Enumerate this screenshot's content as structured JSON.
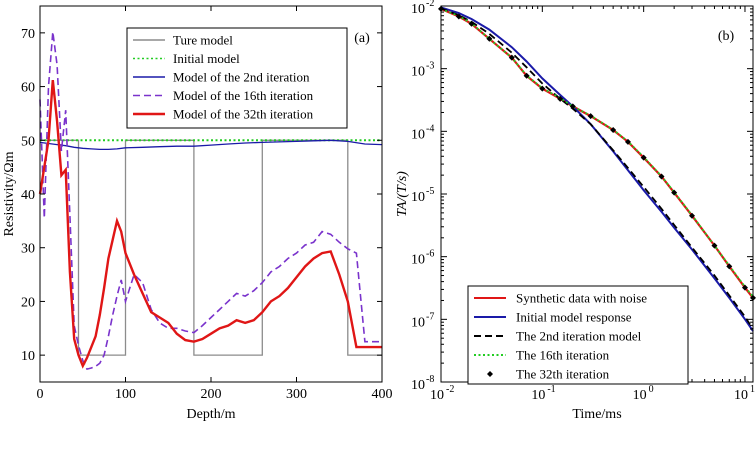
{
  "chart_data": [
    {
      "panel_label": "(a)",
      "type": "line",
      "xlabel": "Depth/m",
      "ylabel": "Resistivity/Ωm",
      "xlim": [
        0,
        400
      ],
      "ylim": [
        5,
        75
      ],
      "xticks": [
        0,
        100,
        200,
        300,
        400
      ],
      "yticks": [
        10,
        20,
        30,
        40,
        50,
        60,
        70
      ],
      "legend_position": "top-right",
      "series": [
        {
          "name": "Ture model",
          "color": "#8c8c8c",
          "dash": "solid",
          "x": [
            0,
            45,
            45,
            100,
            100,
            180,
            180,
            260,
            260,
            360,
            360,
            400
          ],
          "y": [
            50,
            50,
            10,
            10,
            50,
            50,
            10,
            10,
            50,
            50,
            10,
            10
          ]
        },
        {
          "name": "Initial model",
          "color": "#22cc22",
          "dash": "dotted",
          "x": [
            0,
            400
          ],
          "y": [
            50,
            50
          ]
        },
        {
          "name": "Model of the 2nd iteration",
          "color": "#1a1aa8",
          "dash": "solid",
          "x": [
            0,
            10,
            20,
            30,
            40,
            50,
            60,
            70,
            80,
            90,
            100,
            120,
            140,
            160,
            180,
            200,
            220,
            240,
            260,
            280,
            300,
            320,
            340,
            360,
            380,
            400
          ],
          "y": [
            49.6,
            49.4,
            49.2,
            49.0,
            48.7,
            48.5,
            48.4,
            48.3,
            48.3,
            48.4,
            48.6,
            48.7,
            48.8,
            48.9,
            48.9,
            49.1,
            49.3,
            49.5,
            49.6,
            49.7,
            49.8,
            49.9,
            50.0,
            49.8,
            49.3,
            49.2
          ]
        },
        {
          "name": "Model of the 16th iteration",
          "color": "#7a33cc",
          "dash": "dashed",
          "x": [
            0,
            5,
            10,
            15,
            20,
            25,
            30,
            35,
            40,
            45,
            50,
            55,
            60,
            65,
            70,
            75,
            80,
            85,
            90,
            95,
            100,
            110,
            120,
            130,
            140,
            150,
            160,
            170,
            180,
            190,
            200,
            210,
            220,
            230,
            240,
            250,
            260,
            270,
            280,
            290,
            300,
            310,
            320,
            330,
            340,
            350,
            360,
            370,
            380,
            390,
            400
          ],
          "y": [
            57.6,
            35.5,
            60.0,
            70.2,
            64.0,
            48.0,
            55.6,
            36.0,
            15.5,
            11.8,
            9.0,
            7.4,
            7.6,
            7.9,
            8.5,
            10.0,
            13.5,
            17.5,
            21.0,
            24.0,
            20.0,
            25.0,
            23.5,
            18.5,
            16.0,
            15.0,
            15.0,
            14.5,
            14.2,
            15.5,
            17.0,
            18.5,
            20.0,
            21.5,
            21.0,
            22.0,
            23.5,
            25.5,
            26.5,
            28.0,
            29.0,
            30.5,
            31.0,
            33.0,
            32.5,
            31.0,
            29.8,
            29.0,
            12.5,
            12.5,
            12.5
          ]
        },
        {
          "name": "Model of the 32th iteration",
          "color": "#e01616",
          "dash": "solid",
          "x": [
            0,
            5,
            10,
            15,
            20,
            25,
            30,
            35,
            40,
            45,
            50,
            55,
            60,
            65,
            70,
            75,
            80,
            85,
            90,
            95,
            100,
            110,
            120,
            130,
            140,
            150,
            160,
            170,
            180,
            190,
            200,
            210,
            220,
            230,
            240,
            250,
            260,
            270,
            280,
            290,
            300,
            310,
            320,
            330,
            340,
            350,
            360,
            370,
            380,
            390,
            400
          ],
          "y": [
            40.0,
            45.0,
            50.0,
            61.2,
            53.5,
            43.5,
            44.5,
            25.5,
            13.0,
            10.0,
            8.0,
            9.5,
            11.5,
            13.5,
            17.5,
            22.5,
            28.0,
            31.5,
            35.0,
            33.0,
            29.0,
            25.0,
            21.5,
            18.0,
            17.0,
            16.0,
            14.0,
            12.8,
            12.5,
            13.0,
            14.0,
            15.0,
            15.5,
            16.5,
            16.0,
            16.5,
            18.0,
            20.0,
            21.0,
            22.5,
            24.5,
            26.5,
            28.0,
            29.0,
            29.3,
            25.0,
            20.0,
            11.5,
            11.5,
            11.5,
            11.5
          ]
        }
      ]
    },
    {
      "panel_label": "(b)",
      "type": "line",
      "xscale": "log",
      "yscale": "log",
      "xlabel": "Time/ms",
      "ylabel": "TA/(T/s)",
      "xlim": [
        0.01,
        12
      ],
      "ylim": [
        1e-08,
        0.01
      ],
      "xticks_exp": [
        -2,
        -1,
        0,
        1
      ],
      "yticks_exp": [
        -8,
        -7,
        -6,
        -5,
        -4,
        -3,
        -2
      ],
      "legend_position": "bottom-left",
      "series": [
        {
          "name": "Synthetic data with noise",
          "color": "#e01616",
          "dash": "solid",
          "marker": "none",
          "x": [
            0.01,
            0.015,
            0.02,
            0.03,
            0.05,
            0.07,
            0.1,
            0.15,
            0.2,
            0.3,
            0.5,
            0.7,
            1.0,
            1.5,
            2.0,
            3.0,
            5.0,
            7.0,
            10.0,
            12.0
          ],
          "y": [
            0.009,
            0.0068,
            0.0052,
            0.003,
            0.0015,
            0.00077,
            0.00048,
            0.00033,
            0.00025,
            0.000175,
            0.000105,
            6.8e-05,
            3.8e-05,
            1.9e-05,
            1.05e-05,
            4.5e-06,
            1.5e-06,
            7e-07,
            3.2e-07,
            2.2e-07
          ]
        },
        {
          "name": "Initial model response",
          "color": "#1a1aa8",
          "dash": "solid",
          "marker": "none",
          "x": [
            0.01,
            0.015,
            0.02,
            0.03,
            0.05,
            0.07,
            0.1,
            0.15,
            0.2,
            0.3,
            0.5,
            0.7,
            1.0,
            1.5,
            2.0,
            3.0,
            5.0,
            7.0,
            10.0,
            12.0
          ],
          "y": [
            0.0095,
            0.0077,
            0.0062,
            0.0042,
            0.0022,
            0.0013,
            0.0007,
            0.00038,
            0.00025,
            0.00013,
            4.8e-05,
            2.4e-05,
            1.15e-05,
            5.2e-06,
            2.9e-06,
            1.3e-06,
            4.5e-07,
            2.2e-07,
            1e-07,
            6.5e-08
          ]
        },
        {
          "name": "The 2nd iteration model",
          "color": "#000000",
          "dash": "dashed",
          "marker": "none",
          "x": [
            0.01,
            0.015,
            0.02,
            0.03,
            0.05,
            0.07,
            0.1,
            0.15,
            0.2,
            0.3,
            0.5,
            0.7,
            1.0,
            1.5,
            2.0,
            3.0,
            5.0,
            7.0,
            10.0,
            12.0
          ],
          "y": [
            0.0092,
            0.0071,
            0.0056,
            0.0036,
            0.0018,
            0.00105,
            0.00058,
            0.00033,
            0.00023,
            0.00013,
            5e-05,
            2.6e-05,
            1.3e-05,
            5.8e-06,
            3.2e-06,
            1.4e-06,
            5e-07,
            2.4e-07,
            1.1e-07,
            7e-08
          ]
        },
        {
          "name": "The 16th iteration",
          "color": "#22cc22",
          "dash": "dotted",
          "marker": "none",
          "x": [
            0.01,
            0.015,
            0.02,
            0.03,
            0.05,
            0.07,
            0.1,
            0.15,
            0.2,
            0.3,
            0.5,
            0.7,
            1.0,
            1.5,
            2.0,
            3.0,
            5.0,
            7.0,
            10.0,
            12.0
          ],
          "y": [
            0.009,
            0.0069,
            0.0053,
            0.003,
            0.0015,
            0.00078,
            0.00049,
            0.00034,
            0.00025,
            0.000178,
            0.000106,
            6.9e-05,
            3.9e-05,
            1.92e-05,
            1.07e-05,
            4.6e-06,
            1.5e-06,
            7.2e-07,
            3.3e-07,
            2.3e-07
          ]
        },
        {
          "name": "The 32th iteration",
          "color": "#000000",
          "dash": "none",
          "marker": "diamond",
          "x": [
            0.01,
            0.015,
            0.02,
            0.03,
            0.05,
            0.07,
            0.1,
            0.15,
            0.2,
            0.3,
            0.5,
            0.7,
            1.0,
            1.5,
            2.0,
            3.0,
            5.0,
            7.0,
            10.0,
            12.0
          ],
          "y": [
            0.009,
            0.0068,
            0.0052,
            0.003,
            0.0015,
            0.00077,
            0.00048,
            0.00033,
            0.00025,
            0.000175,
            0.000105,
            6.8e-05,
            3.8e-05,
            1.9e-05,
            1.05e-05,
            4.5e-06,
            1.5e-06,
            7e-07,
            3.2e-07,
            2.2e-07
          ]
        }
      ]
    }
  ]
}
